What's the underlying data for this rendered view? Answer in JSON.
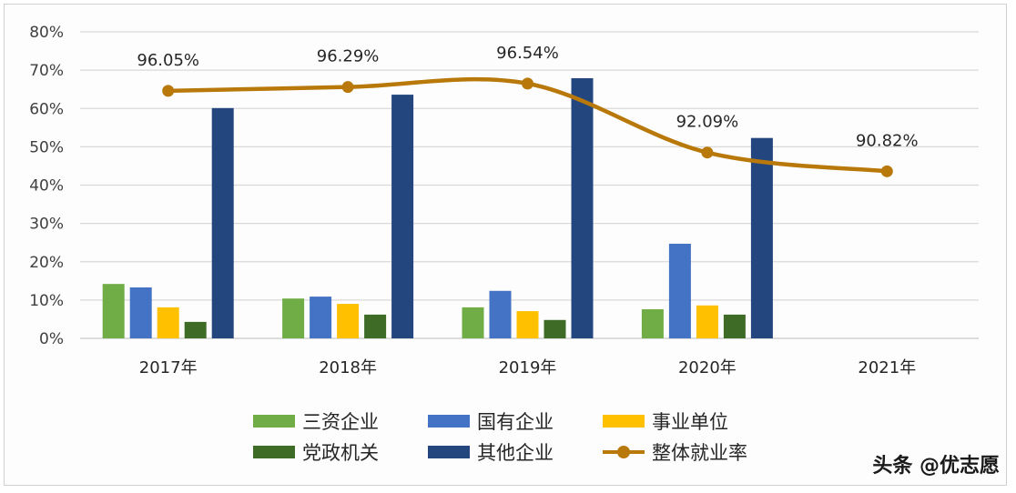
{
  "chart_data": {
    "type": "bar",
    "title": "",
    "xlabel": "",
    "ylabel": "",
    "ylim": [
      0,
      80
    ],
    "yticks": [
      "0%",
      "10%",
      "20%",
      "30%",
      "40%",
      "50%",
      "60%",
      "70%",
      "80%"
    ],
    "grid": true,
    "legend_position": "bottom",
    "categories": [
      "2017年",
      "2018年",
      "2019年",
      "2020年",
      "2021年"
    ],
    "series": [
      {
        "name": "三资企业",
        "type": "bar",
        "color": "#70ad47",
        "values": [
          14.2,
          10.4,
          8.1,
          7.6,
          null
        ]
      },
      {
        "name": "国有企业",
        "type": "bar",
        "color": "#4472c4",
        "values": [
          13.3,
          10.9,
          12.4,
          24.7,
          null
        ]
      },
      {
        "name": "事业单位",
        "type": "bar",
        "color": "#ffc000",
        "values": [
          8.1,
          9.0,
          7.1,
          8.6,
          null
        ]
      },
      {
        "name": "党政机关",
        "type": "bar",
        "color": "#3e6b26",
        "values": [
          4.3,
          6.2,
          4.8,
          6.2,
          null
        ]
      },
      {
        "name": "其他企业",
        "type": "bar",
        "color": "#23467f",
        "values": [
          60.1,
          63.6,
          67.9,
          52.3,
          null
        ]
      },
      {
        "name": "整体就业率",
        "type": "line",
        "color": "#b8780a",
        "smooth": true,
        "values": [
          96.05,
          96.29,
          96.54,
          92.09,
          90.82
        ],
        "labels": [
          "96.05%",
          "96.29%",
          "96.54%",
          "92.09%",
          "90.82%"
        ],
        "plotted_y_pct": [
          64.6,
          65.6,
          66.5,
          48.5,
          43.6
        ]
      }
    ]
  },
  "credit": "头条 @优志愿"
}
